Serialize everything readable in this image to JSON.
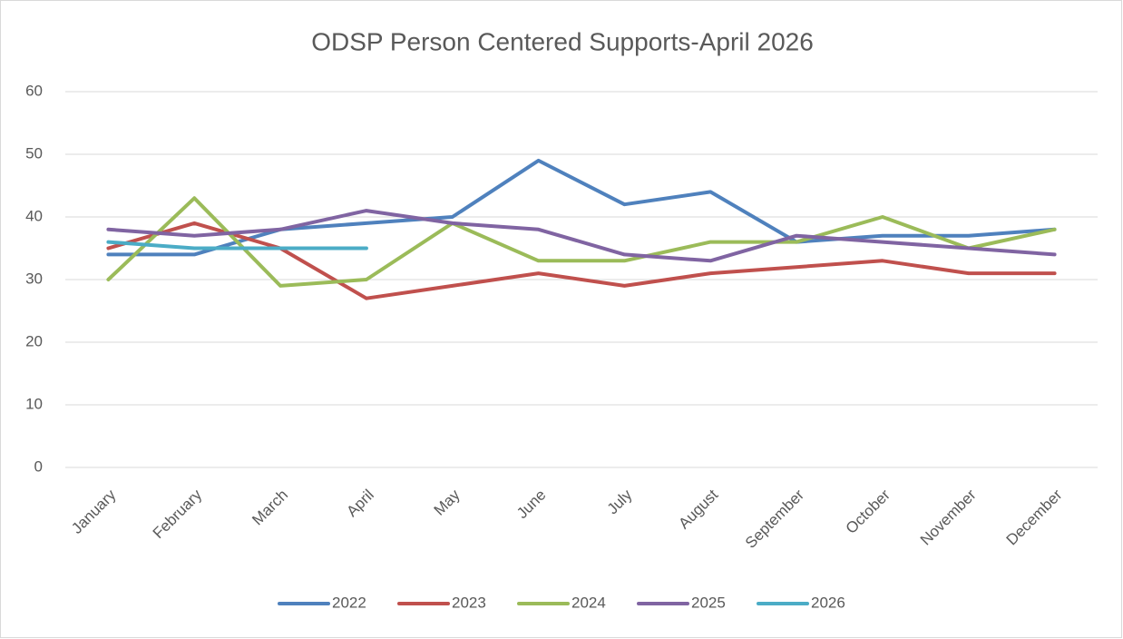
{
  "chart_data": {
    "type": "line",
    "title": "ODSP Person Centered Supports-April 2026",
    "categories": [
      "January",
      "February",
      "March",
      "April",
      "May",
      "June",
      "July",
      "August",
      "September",
      "October",
      "November",
      "December"
    ],
    "series": [
      {
        "name": "2022",
        "color": "#4f81bd",
        "values": [
          34,
          34,
          38,
          39,
          40,
          49,
          42,
          44,
          36,
          37,
          37,
          38
        ]
      },
      {
        "name": "2023",
        "color": "#c0504d",
        "values": [
          35,
          39,
          35,
          27,
          29,
          31,
          29,
          31,
          32,
          33,
          31,
          31
        ]
      },
      {
        "name": "2024",
        "color": "#9bbb59",
        "values": [
          30,
          43,
          29,
          30,
          39,
          33,
          33,
          36,
          36,
          40,
          35,
          38
        ]
      },
      {
        "name": "2025",
        "color": "#8064a2",
        "values": [
          38,
          37,
          38,
          41,
          39,
          38,
          34,
          33,
          37,
          36,
          35,
          34
        ]
      },
      {
        "name": "2026",
        "color": "#4bacc6",
        "values": [
          36,
          35,
          35,
          35,
          null,
          null,
          null,
          null,
          null,
          null,
          null,
          null
        ]
      }
    ],
    "ylim": [
      0,
      60
    ],
    "yticks": [
      0,
      10,
      20,
      30,
      40,
      50,
      60
    ],
    "grid": true,
    "legend": "bottom"
  }
}
